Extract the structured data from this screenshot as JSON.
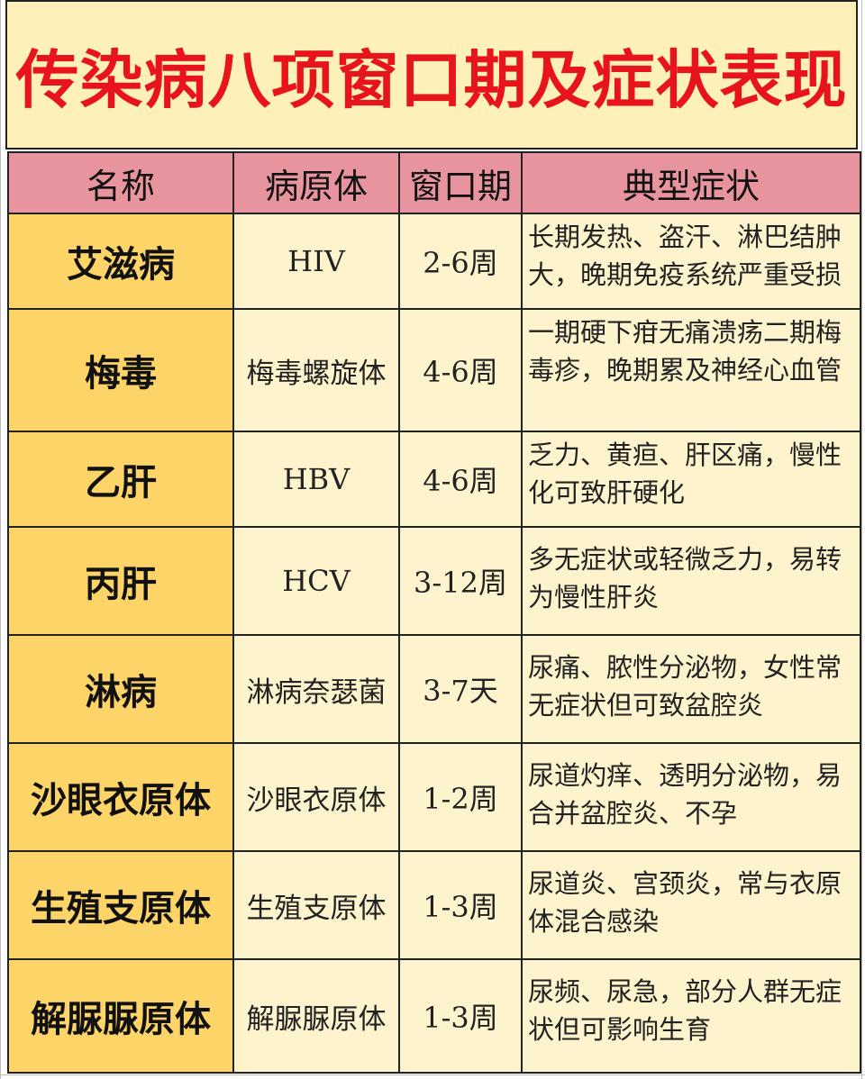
{
  "title": "传染病八项窗口期及症状表现",
  "columns": [
    "名称",
    "病原体",
    "窗口期",
    "典型症状"
  ],
  "rows": [
    {
      "name": "艾滋病",
      "pathogen": "HIV",
      "window": "2-6周",
      "symptoms": "长期发热、盗汗、淋巴结肿大，晚期免疫系统严重受损"
    },
    {
      "name": "梅毒",
      "pathogen": "梅毒螺旋体",
      "window": "4-6周",
      "symptoms": "一期硬下疳无痛溃疡二期梅毒疹，晚期累及神经心血管"
    },
    {
      "name": "乙肝",
      "pathogen": "HBV",
      "window": "4-6周",
      "symptoms": "乏力、黄疸、肝区痛，慢性化可致肝硬化"
    },
    {
      "name": "丙肝",
      "pathogen": "HCV",
      "window": "3-12周",
      "symptoms": "多无症状或轻微乏力，易转为慢性肝炎"
    },
    {
      "name": "淋病",
      "pathogen": "淋病奈瑟菌",
      "window": "3-7天",
      "symptoms": "尿痛、脓性分泌物，女性常无症状但可致盆腔炎"
    },
    {
      "name": "沙眼衣原体",
      "pathogen": "沙眼衣原体",
      "window": "1-2周",
      "symptoms": "尿道灼痒、透明分泌物，易合并盆腔炎、不孕"
    },
    {
      "name": "生殖支原体",
      "pathogen": "生殖支原体",
      "window": "1-3周",
      "symptoms": "尿道炎、宫颈炎，常与衣原体混合感染"
    },
    {
      "name": "解脲脲原体",
      "pathogen": "解脲脲原体",
      "window": "1-3周",
      "symptoms": "尿频、尿急，部分人群无症状但可影响生育"
    }
  ]
}
